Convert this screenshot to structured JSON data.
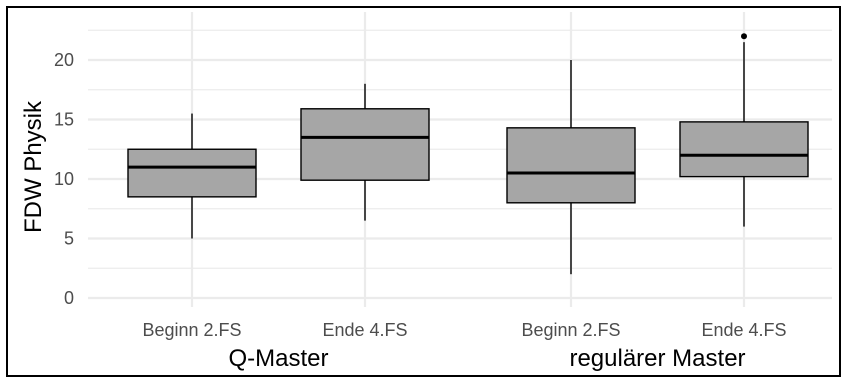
{
  "chart_data": {
    "type": "boxplot",
    "title": "",
    "xlabel": "",
    "ylabel": "FDW Physik",
    "ylim": [
      -0.5,
      23
    ],
    "yticks": [
      0,
      5,
      10,
      15,
      20
    ],
    "grid": true,
    "groups": [
      {
        "label": "Q-Master",
        "boxes": [
          {
            "label": "Beginn 2.FS",
            "min": 5,
            "q1": 8.5,
            "median": 11,
            "q3": 12.5,
            "max": 15.5,
            "outliers": []
          },
          {
            "label": "Ende 4.FS",
            "min": 6.5,
            "q1": 9.9,
            "median": 13.5,
            "q3": 15.9,
            "max": 18,
            "outliers": []
          }
        ]
      },
      {
        "label": "regulärer Master",
        "boxes": [
          {
            "label": "Beginn 2.FS",
            "min": 2,
            "q1": 8,
            "median": 10.5,
            "q3": 14.3,
            "max": 20,
            "outliers": []
          },
          {
            "label": "Ende 4.FS",
            "min": 6,
            "q1": 10.2,
            "median": 12,
            "q3": 14.8,
            "max": 21.5,
            "outliers": [
              22
            ]
          }
        ]
      }
    ],
    "colors": {
      "box_fill": "#a6a6a6",
      "line": "#000000",
      "grid": "#ebebeb",
      "tick_text": "#4d4d4d"
    }
  }
}
